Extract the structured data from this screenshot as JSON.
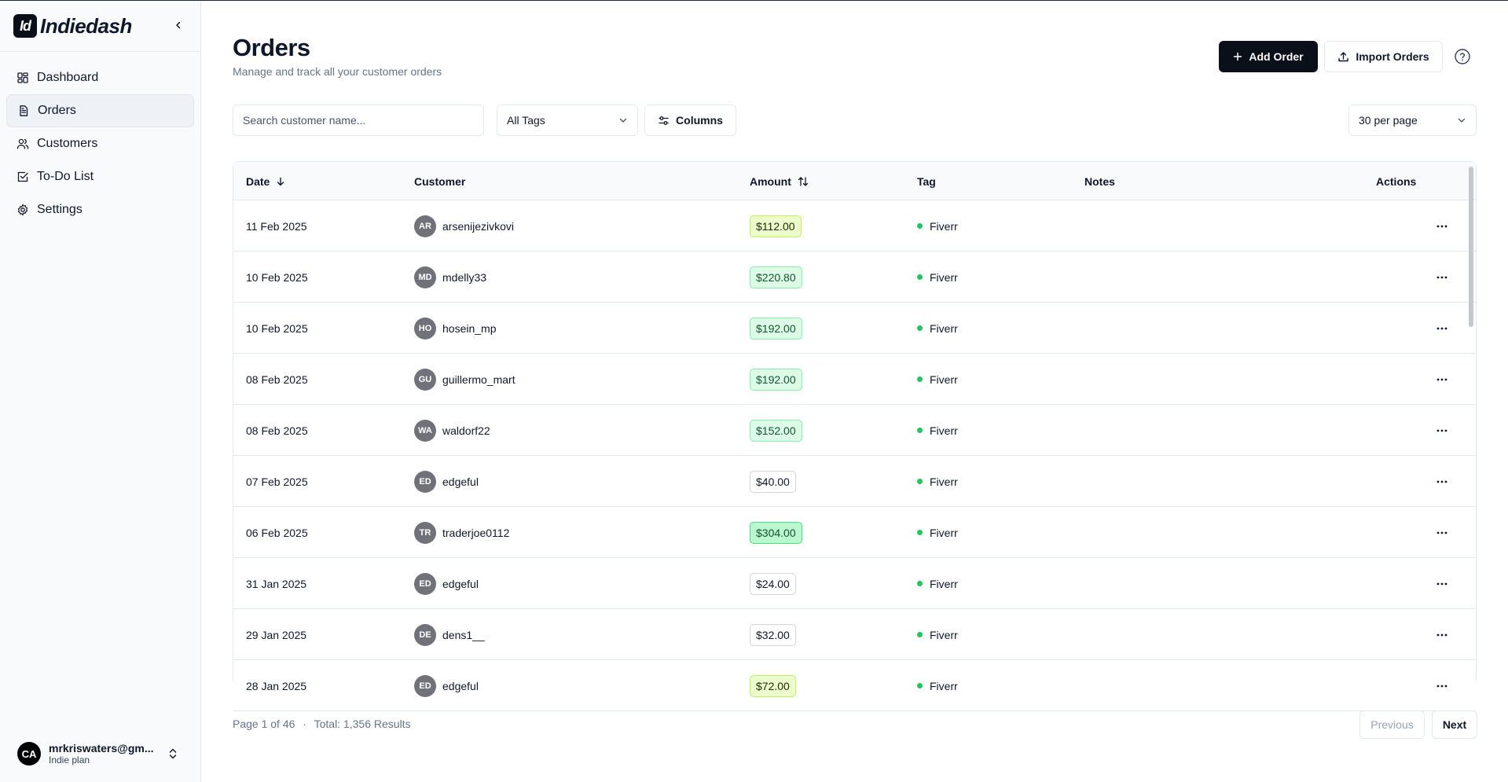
{
  "brand": {
    "logo_text": "Id",
    "name": "Indiedash"
  },
  "sidebar": {
    "items": [
      {
        "label": "Dashboard",
        "icon": "dashboard-icon"
      },
      {
        "label": "Orders",
        "icon": "document-icon"
      },
      {
        "label": "Customers",
        "icon": "users-icon"
      },
      {
        "label": "To-Do List",
        "icon": "checkbox-icon"
      },
      {
        "label": "Settings",
        "icon": "gear-icon"
      }
    ],
    "active": "Orders"
  },
  "user": {
    "initials": "CA",
    "email": "mrkriswaters@gm...",
    "plan": "Indie plan"
  },
  "header": {
    "title": "Orders",
    "subtitle": "Manage and track all your customer orders",
    "add_label": "Add Order",
    "import_label": "Import Orders"
  },
  "filters": {
    "search_placeholder": "Search customer name...",
    "tags_value": "All Tags",
    "columns_label": "Columns",
    "per_page_value": "30 per page"
  },
  "table": {
    "headers": {
      "date": "Date",
      "customer": "Customer",
      "amount": "Amount",
      "tag": "Tag",
      "notes": "Notes",
      "actions": "Actions"
    },
    "rows": [
      {
        "date": "11 Feb 2025",
        "initials": "AR",
        "customer": "arsenijezivkovi",
        "amount": "$112.00",
        "tone": "lime",
        "tag": "Fiverr",
        "notes": ""
      },
      {
        "date": "10 Feb 2025",
        "initials": "MD",
        "customer": "mdelly33",
        "amount": "$220.80",
        "tone": "green",
        "tag": "Fiverr",
        "notes": ""
      },
      {
        "date": "10 Feb 2025",
        "initials": "HO",
        "customer": "hosein_mp",
        "amount": "$192.00",
        "tone": "green",
        "tag": "Fiverr",
        "notes": ""
      },
      {
        "date": "08 Feb 2025",
        "initials": "GU",
        "customer": "guillermo_mart",
        "amount": "$192.00",
        "tone": "green",
        "tag": "Fiverr",
        "notes": ""
      },
      {
        "date": "08 Feb 2025",
        "initials": "WA",
        "customer": "waldorf22",
        "amount": "$152.00",
        "tone": "green",
        "tag": "Fiverr",
        "notes": ""
      },
      {
        "date": "07 Feb 2025",
        "initials": "ED",
        "customer": "edgeful",
        "amount": "$40.00",
        "tone": "neutral",
        "tag": "Fiverr",
        "notes": ""
      },
      {
        "date": "06 Feb 2025",
        "initials": "TR",
        "customer": "traderjoe0112",
        "amount": "$304.00",
        "tone": "green2",
        "tag": "Fiverr",
        "notes": ""
      },
      {
        "date": "31 Jan 2025",
        "initials": "ED",
        "customer": "edgeful",
        "amount": "$24.00",
        "tone": "neutral",
        "tag": "Fiverr",
        "notes": ""
      },
      {
        "date": "29 Jan 2025",
        "initials": "DE",
        "customer": "dens1__",
        "amount": "$32.00",
        "tone": "neutral",
        "tag": "Fiverr",
        "notes": ""
      },
      {
        "date": "28 Jan 2025",
        "initials": "ED",
        "customer": "edgeful",
        "amount": "$72.00",
        "tone": "lime",
        "tag": "Fiverr",
        "notes": ""
      }
    ]
  },
  "footer": {
    "page_info": "Page 1 of 46",
    "separator": "·",
    "total": "Total: 1,356 Results",
    "previous_label": "Previous",
    "next_label": "Next"
  },
  "colors": {
    "primary": "#0b0f19",
    "tag_dot": "#22c55e",
    "avatar": "#71717a"
  }
}
